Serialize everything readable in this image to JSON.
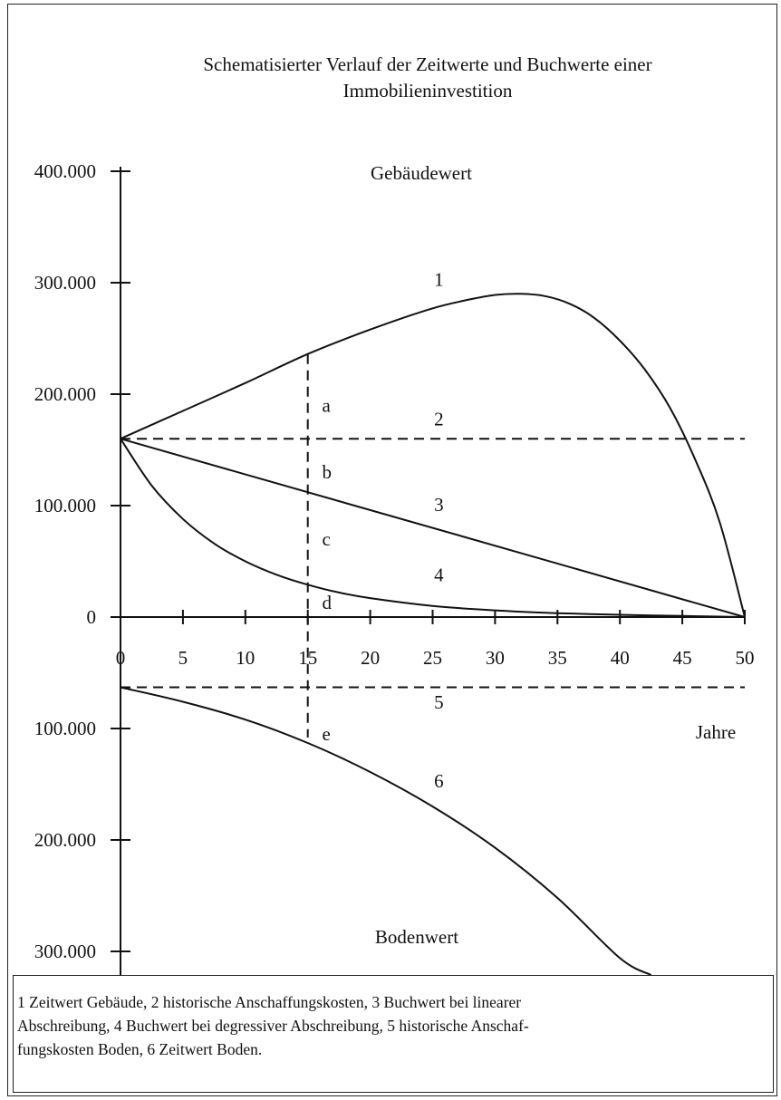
{
  "chart_data": {
    "type": "line",
    "title": "Schematisierter Verlauf der Zeitwerte und Buchwerte einer",
    "subtitle": "Immobilieninvestition",
    "xlabel": "Jahre",
    "region_labels": {
      "upper": "Gebäudewert",
      "lower": "Bodenwert"
    },
    "x_ticks": [
      0,
      5,
      10,
      15,
      20,
      25,
      30,
      35,
      40,
      45,
      50
    ],
    "y_ticks": [
      {
        "value": 400000,
        "label": "400.000"
      },
      {
        "value": 300000,
        "label": "300.000"
      },
      {
        "value": 200000,
        "label": "200.000"
      },
      {
        "value": 100000,
        "label": "100.000"
      },
      {
        "value": 0,
        "label": "0"
      },
      {
        "value": -100000,
        "label": "100.000"
      },
      {
        "value": -200000,
        "label": "200.000"
      },
      {
        "value": -300000,
        "label": "300.000"
      }
    ],
    "xlim": [
      0,
      50
    ],
    "ylim": [
      -325000,
      400000
    ],
    "series": [
      {
        "label": "1",
        "style": "solid",
        "x": [
          0,
          5,
          10,
          15,
          20,
          25,
          28,
          30,
          32,
          34,
          36,
          38,
          40,
          42,
          44,
          46,
          48,
          50
        ],
        "y": [
          160000,
          185000,
          210000,
          236000,
          258000,
          277000,
          285000,
          289000,
          290000,
          288000,
          281000,
          268000,
          248000,
          222000,
          188000,
          142000,
          85000,
          0
        ]
      },
      {
        "label": "2",
        "style": "dashed",
        "x": [
          0,
          50
        ],
        "y": [
          160000,
          160000
        ]
      },
      {
        "label": "3",
        "style": "solid",
        "x": [
          0,
          50
        ],
        "y": [
          160000,
          0
        ]
      },
      {
        "label": "4",
        "style": "solid",
        "x": [
          0,
          2.5,
          5,
          7.5,
          10,
          12.5,
          15,
          17.5,
          20,
          25,
          30,
          35,
          40,
          45,
          50
        ],
        "y": [
          160000,
          118000,
          88000,
          66000,
          50000,
          38000,
          29000,
          22000,
          17000,
          10000,
          6000,
          3500,
          2000,
          1000,
          0
        ]
      },
      {
        "label": "5",
        "style": "dashed",
        "x": [
          0,
          50
        ],
        "y": [
          -63000,
          -63000
        ]
      },
      {
        "label": "6",
        "style": "solid",
        "x": [
          0,
          5,
          10,
          15,
          20,
          25,
          30,
          35,
          40,
          42.5
        ],
        "y": [
          -63000,
          -76000,
          -92000,
          -113000,
          -139000,
          -170000,
          -207000,
          -252000,
          -306000,
          -325000
        ]
      }
    ],
    "series_label_positions": [
      {
        "label": "1",
        "x": 25.5,
        "y": 297000
      },
      {
        "label": "2",
        "x": 25.5,
        "y": 172000
      },
      {
        "label": "3",
        "x": 25.5,
        "y": 95000
      },
      {
        "label": "4",
        "x": 25.5,
        "y": 32000
      },
      {
        "label": "5",
        "x": 25.5,
        "y": -82000
      },
      {
        "label": "6",
        "x": 25.5,
        "y": -153000
      }
    ],
    "annotation_line": {
      "x": 15,
      "y_top": 236000,
      "y_bottom": -108000,
      "style": "dashed"
    },
    "segment_labels": [
      {
        "label": "a",
        "x": 16,
        "y": 190000
      },
      {
        "label": "b",
        "x": 16,
        "y": 130000
      },
      {
        "label": "c",
        "x": 16,
        "y": 70000
      },
      {
        "label": "d",
        "x": 16,
        "y": 13000
      },
      {
        "label": "e",
        "x": 16,
        "y": -105000
      }
    ],
    "legend": [
      "1  Zeitwert Gebäude,   2   historische Anschaffungskosten,   3   Buchwert bei linearer",
      "Abschreibung,   4   Buchwert bei degressiver Abschreibung,   5   historische Anschaf-",
      "fungskosten Boden,   6   Zeitwert Boden."
    ]
  }
}
